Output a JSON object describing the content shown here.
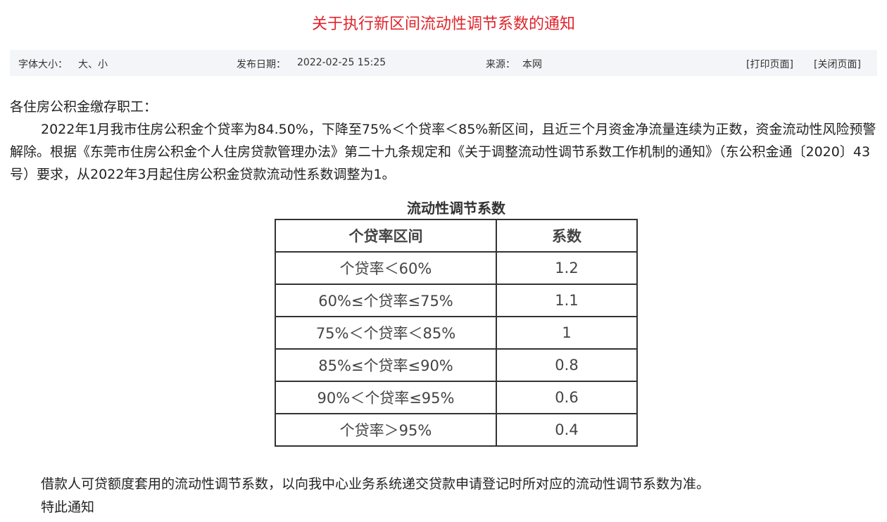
{
  "title": "关于执行新区间流动性调节系数的通知",
  "meta": {
    "font_size_label": "字体大小：",
    "font_size_options": "大、小",
    "publish_label": "发布日期：",
    "publish_date": "2022-02-25 15:25",
    "source_label": "来源：",
    "source": "本网",
    "print_link": "[打印页面]",
    "close_link": "[关闭页面]"
  },
  "body": {
    "salutation": "各住房公积金缴存职工：",
    "paragraph1": "2022年1月我市住房公积金个贷率为84.50%，下降至75%＜个贷率＜85%新区间，且近三个月资金净流量连续为正数，资金流动性风险预警解除。根据《东莞市住房公积金个人住房贷款管理办法》第二十九条规定和《关于调整流动性调节系数工作机制的通知》（东公积金通〔2020〕43号）要求，从2022年3月起住房公积金贷款流动性系数调整为1。",
    "paragraph2": "借款人可贷额度套用的流动性调节系数，以向我中心业务系统递交贷款申请登记时所对应的流动性调节系数为准。",
    "closing": "特此通知"
  },
  "table": {
    "caption": "流动性调节系数",
    "headers": [
      "个贷率区间",
      "系数"
    ],
    "rows": [
      [
        "个贷率＜60%",
        "1.2"
      ],
      [
        "60%≤个贷率≤75%",
        "1.1"
      ],
      [
        "75%＜个贷率＜85%",
        "1"
      ],
      [
        "85%≤个贷率≤90%",
        "0.8"
      ],
      [
        "90%＜个贷率≤95%",
        "0.6"
      ],
      [
        "个贷率＞95%",
        "0.4"
      ]
    ]
  }
}
